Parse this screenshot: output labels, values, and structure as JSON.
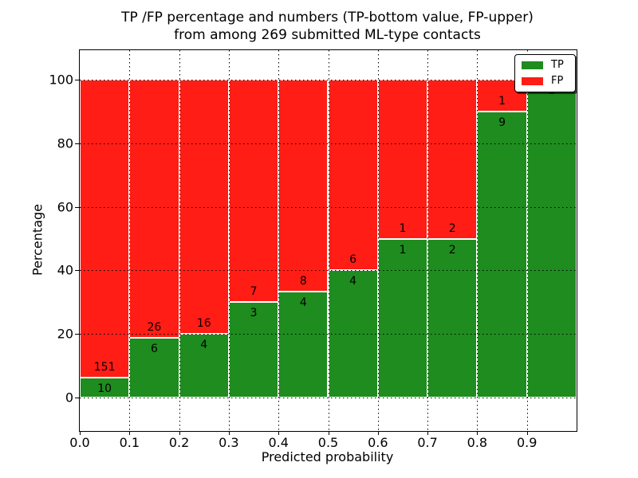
{
  "title": {
    "line1": "TP /FP percentage and numbers (TP-bottom value, FP-upper)",
    "line2": "from among 269 submitted ML-type contacts"
  },
  "x_axis": {
    "label": "Predicted probability",
    "ticks": [
      "0.0",
      "0.1",
      "0.2",
      "0.3",
      "0.4",
      "0.5",
      "0.6",
      "0.7",
      "0.8",
      "0.9"
    ]
  },
  "y_axis": {
    "label": "Percentage",
    "ticks": [
      "0",
      "20",
      "40",
      "60",
      "80",
      "100"
    ]
  },
  "legend": {
    "items": [
      {
        "label": "TP",
        "color": "#1e8c1e"
      },
      {
        "label": "FP",
        "color": "#ff1d16"
      }
    ]
  },
  "chart_data": {
    "type": "bar",
    "variant": "stacked-percentage",
    "title": "TP /FP percentage and numbers (TP-bottom value, FP-upper) from among 269 submitted ML-type contacts",
    "xlabel": "Predicted probability",
    "ylabel": "Percentage",
    "total_contacts": 269,
    "bin_width": 0.1,
    "categories": [
      "0.0-0.1",
      "0.1-0.2",
      "0.2-0.3",
      "0.3-0.4",
      "0.4-0.5",
      "0.5-0.6",
      "0.6-0.7",
      "0.7-0.8",
      "0.8-0.9",
      "0.9-1.0"
    ],
    "series": [
      {
        "name": "TP",
        "color": "#1e8c1e",
        "counts": [
          10,
          6,
          4,
          3,
          4,
          4,
          1,
          2,
          9,
          8
        ]
      },
      {
        "name": "FP",
        "color": "#ff1d16",
        "counts": [
          151,
          26,
          16,
          7,
          8,
          6,
          1,
          2,
          1,
          0
        ]
      }
    ],
    "tp_percentage": [
      6.21,
      18.75,
      20.0,
      30.0,
      33.33,
      40.0,
      50.0,
      50.0,
      90.0,
      100.0
    ],
    "annotation_rule": "FP count above green-bar top, TP count below green-bar top",
    "xlim": [
      0.0,
      1.0
    ],
    "ylim": [
      -10,
      110
    ],
    "grid": true,
    "grid_style": "dotted",
    "legend_position": "upper right"
  }
}
